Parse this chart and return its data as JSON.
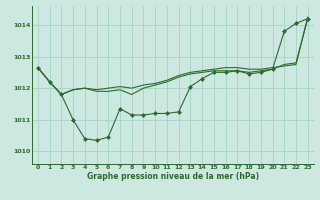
{
  "xlabel": "Graphe pression niveau de la mer (hPa)",
  "background_color": "#cce8e0",
  "grid_color": "#a8d8c8",
  "line_color": "#2d6a2d",
  "marker_color": "#2d6a2d",
  "ylim": [
    1009.6,
    1014.6
  ],
  "xlim": [
    -0.5,
    23.5
  ],
  "yticks": [
    1010,
    1011,
    1012,
    1013,
    1014
  ],
  "xticks": [
    0,
    1,
    2,
    3,
    4,
    5,
    6,
    7,
    8,
    9,
    10,
    11,
    12,
    13,
    14,
    15,
    16,
    17,
    18,
    19,
    20,
    21,
    22,
    23
  ],
  "series": [
    {
      "y": [
        1012.65,
        1012.2,
        1011.8,
        1011.0,
        1010.4,
        1010.35,
        1010.45,
        1011.35,
        1011.15,
        1011.15,
        1011.2,
        1011.2,
        1011.25,
        1012.05,
        1012.3,
        1012.5,
        1012.5,
        1012.55,
        1012.45,
        1012.5,
        1012.6,
        1013.8,
        1014.05,
        1014.2
      ],
      "markers": true
    },
    {
      "y": [
        1012.65,
        1012.2,
        1011.8,
        1011.95,
        1012.0,
        1011.9,
        1011.9,
        1011.95,
        1011.8,
        1012.0,
        1012.1,
        1012.2,
        1012.35,
        1012.45,
        1012.5,
        1012.55,
        1012.55,
        1012.55,
        1012.5,
        1012.55,
        1012.6,
        1012.75,
        1012.8,
        1014.2
      ],
      "markers": false
    },
    {
      "y": [
        1012.65,
        1012.2,
        1011.8,
        1011.95,
        1012.0,
        1011.95,
        1012.0,
        1012.05,
        1012.0,
        1012.1,
        1012.15,
        1012.25,
        1012.4,
        1012.5,
        1012.55,
        1012.6,
        1012.65,
        1012.65,
        1012.6,
        1012.6,
        1012.65,
        1012.7,
        1012.75,
        1014.25
      ],
      "markers": false
    }
  ]
}
